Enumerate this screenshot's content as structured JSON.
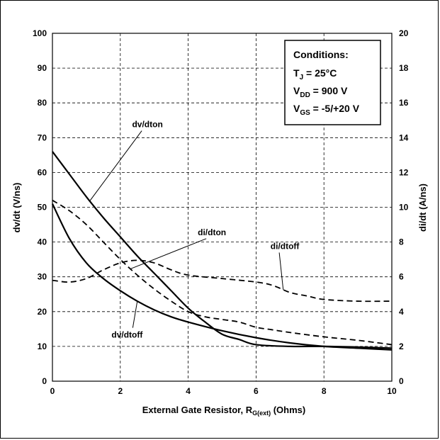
{
  "chart_data": {
    "type": "line",
    "xlabel": {
      "main": "External Gate Resistor, R",
      "sub": "G(ext)",
      "tail": " (Ohms)"
    },
    "ylabel_left": "dv/dt (V/ns)",
    "ylabel_right": "di/dt (A/ns)",
    "xlim": [
      0,
      10
    ],
    "ylim_left": [
      0,
      100
    ],
    "ylim_right": [
      0,
      20
    ],
    "x_ticks": [
      "0",
      "2",
      "4",
      "6",
      "8",
      "10"
    ],
    "y_ticks_left": [
      "0",
      "10",
      "20",
      "30",
      "40",
      "50",
      "60",
      "70",
      "80",
      "90",
      "100"
    ],
    "y_ticks_right": [
      "0",
      "2",
      "4",
      "6",
      "8",
      "10",
      "12",
      "14",
      "16",
      "18",
      "20"
    ],
    "grid": true,
    "conditions": {
      "title": "Conditions:",
      "lines": [
        {
          "main": "T",
          "sub": "J",
          "tail": " = 25°C"
        },
        {
          "main": "V",
          "sub": "DD",
          "tail": " = 900 V"
        },
        {
          "main": "V",
          "sub": "GS",
          "tail": " = -5/+20 V"
        }
      ]
    },
    "series": [
      {
        "name": "dv/dton",
        "axis": "left",
        "style": "solid",
        "x": [
          0,
          0.5,
          1,
          1.5,
          2,
          2.5,
          3,
          3.5,
          4,
          4.5,
          5,
          5.5,
          6,
          7,
          8,
          9,
          10
        ],
        "y": [
          66,
          59.5,
          53,
          47,
          41.5,
          36,
          31,
          26,
          21,
          17,
          13.5,
          12,
          10.5,
          10,
          10,
          9.8,
          9.5
        ]
      },
      {
        "name": "dv/dtoff",
        "axis": "left",
        "style": "solid",
        "x": [
          0,
          0.5,
          1,
          1.5,
          2,
          2.5,
          3,
          3.5,
          4,
          5,
          6,
          7,
          8,
          9,
          10
        ],
        "y": [
          51,
          41,
          34,
          29.5,
          26,
          23,
          20.5,
          18.5,
          17,
          14.5,
          12.5,
          11,
          10,
          9.5,
          9
        ]
      },
      {
        "name": "di/dton",
        "axis": "right",
        "style": "dashed",
        "x": [
          0,
          0.5,
          1,
          1.5,
          2,
          2.5,
          3,
          3.5,
          4,
          4.5,
          5,
          5.5,
          6,
          6.5,
          7,
          8,
          9,
          10
        ],
        "y": [
          10.4,
          9.8,
          9,
          8,
          7,
          6.1,
          5.3,
          4.6,
          4,
          3.7,
          3.55,
          3.4,
          3.1,
          2.95,
          2.8,
          2.55,
          2.35,
          2.1
        ]
      },
      {
        "name": "di/dtoff",
        "axis": "right",
        "style": "dashed",
        "x": [
          0,
          0.5,
          1,
          1.5,
          2,
          2.5,
          3,
          3.5,
          4,
          5,
          6,
          6.5,
          7,
          7.5,
          8,
          9,
          10
        ],
        "y": [
          5.8,
          5.7,
          5.9,
          6.4,
          6.8,
          6.95,
          6.8,
          6.4,
          6.1,
          5.9,
          5.7,
          5.5,
          5.1,
          4.9,
          4.7,
          4.6,
          4.6
        ]
      }
    ],
    "annotations": [
      {
        "text": "dv/dton",
        "series": "dv/dton",
        "at_x": 1.1,
        "label_x": 2.8,
        "label_y_left": 73
      },
      {
        "text": "di/dton",
        "series": "di/dton",
        "at_x": 2.3,
        "label_x": 4.7,
        "label_y_left": 42
      },
      {
        "text": "di/dtoff",
        "series": "di/dtoff",
        "at_x": 6.8,
        "label_x": 6.85,
        "label_y_left": 38
      },
      {
        "text": "dv/dtoff",
        "series": "dv/dtoff",
        "at_x": 2.5,
        "label_x": 2.2,
        "label_y_left": 12.5
      }
    ]
  }
}
